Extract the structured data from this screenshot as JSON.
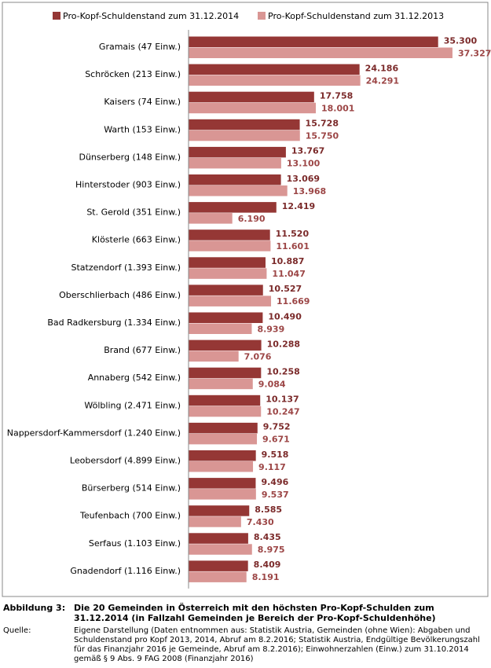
{
  "chart_data": {
    "type": "hbar",
    "categories": [
      "Gramais (47 Einw.)",
      "Schröcken (213 Einw.)",
      "Kaisers (74 Einw.)",
      "Warth (153 Einw.)",
      "Dünserberg (148 Einw.)",
      "Hinterstoder (903 Einw.)",
      "St. Gerold (351 Einw.)",
      "Klösterle (663 Einw.)",
      "Statzendorf (1.393 Einw.)",
      "Oberschlierbach (486 Einw.)",
      "Bad Radkersburg (1.334 Einw.)",
      "Brand (677 Einw.)",
      "Annaberg (542 Einw.)",
      "Wölbling (2.471 Einw.)",
      "Nappersdorf-Kammersdorf (1.240 Einw.)",
      "Leobersdorf (4.899 Einw.)",
      "Bürserberg (514 Einw.)",
      "Teufenbach (700 Einw.)",
      "Serfaus (1.103 Einw.)",
      "Gnadendorf (1.116 Einw.)"
    ],
    "series": [
      {
        "name": "Pro-Kopf-Schuldenstand zum 31.12.2014",
        "color": "#953735",
        "values": [
          35300,
          24186,
          17758,
          15728,
          13767,
          13069,
          12419,
          11520,
          10887,
          10527,
          10490,
          10288,
          10258,
          10137,
          9752,
          9518,
          9496,
          8585,
          8435,
          8409
        ],
        "value_labels": [
          "35.300",
          "24.186",
          "17.758",
          "15.728",
          "13.767",
          "13.069",
          "12.419",
          "11.520",
          "10.887",
          "10.527",
          "10.490",
          "10.288",
          "10.258",
          "10.137",
          "9.752",
          "9.518",
          "9.496",
          "8.585",
          "8.435",
          "8.409"
        ]
      },
      {
        "name": "Pro-Kopf-Schuldenstand zum 31.12.2013",
        "color": "#d99694",
        "values": [
          37327,
          24291,
          18001,
          15750,
          13100,
          13968,
          6190,
          11601,
          11047,
          11669,
          8939,
          7076,
          9084,
          10247,
          9671,
          9117,
          9537,
          7430,
          8975,
          8191
        ],
        "value_labels": [
          "37.327",
          "24.291",
          "18.001",
          "15.750",
          "13.100",
          "13.968",
          "6.190",
          "11.601",
          "11.047",
          "11.669",
          "8.939",
          "7.076",
          "9.084",
          "10.247",
          "9.671",
          "9.117",
          "9.537",
          "7.430",
          "8.975",
          "8.191"
        ]
      }
    ],
    "xlim": [
      0,
      40000
    ]
  },
  "caption": {
    "label": "Abbildung 3:",
    "text": "Die 20 Gemeinden in Österreich mit den höchsten Pro-Kopf-Schulden zum 31.12.2014 (in Fallzahl Gemeinden je Bereich der Pro-Kopf-Schuldenhöhe)"
  },
  "source": {
    "label": "Quelle:",
    "text": "Eigene Darstellung (Daten entnommen aus: Statistik Austria, Gemeinden (ohne Wien): Abgaben und Schuldenstand pro Kopf 2013, 2014, Abruf am 8.2.2016; Statistik Austria, Endgültige Bevölkerungszahl für das Finanzjahr 2016 je Gemeinde, Abruf am 8.2.2016); Einwohnerzahlen (Einw.) zum 31.10.2014 gemäß § 9 Abs. 9 FAG 2008 (Finanzjahr 2016)"
  }
}
